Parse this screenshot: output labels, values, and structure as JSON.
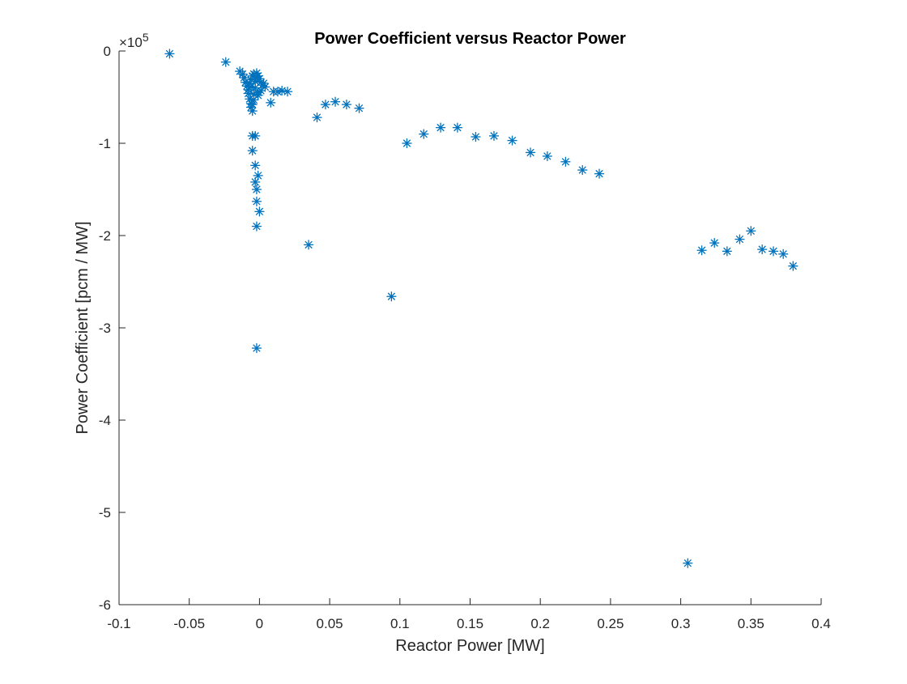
{
  "chart_data": {
    "type": "scatter",
    "title": "Power Coefficient versus Reactor Power",
    "xlabel": "Reactor Power [MW]",
    "ylabel": "Power Coefficient [pcm / MW]",
    "y_exponent_label": "×10",
    "y_exponent_power": "5",
    "xlim": [
      -0.1,
      0.4
    ],
    "ylim": [
      -600000,
      0
    ],
    "xticks": [
      -0.1,
      -0.05,
      0,
      0.05,
      0.1,
      0.15,
      0.2,
      0.25,
      0.3,
      0.35,
      0.4
    ],
    "xtick_labels": [
      "-0.1",
      "-0.05",
      "0",
      "0.05",
      "0.1",
      "0.15",
      "0.2",
      "0.25",
      "0.3",
      "0.35",
      "0.4"
    ],
    "yticks": [
      0,
      -100000,
      -200000,
      -300000,
      -400000,
      -500000,
      -600000
    ],
    "ytick_labels": [
      "0",
      "-1",
      "-2",
      "-3",
      "-4",
      "-5",
      "-6"
    ],
    "marker": "asterisk",
    "color": "#0072BD",
    "grid": false,
    "box": false,
    "legend": false,
    "x": [
      -0.064,
      -0.024,
      -0.014,
      -0.012,
      -0.011,
      -0.01,
      -0.009,
      -0.008,
      -0.008,
      -0.007,
      -0.006,
      -0.006,
      -0.005,
      -0.005,
      -0.004,
      -0.004,
      -0.003,
      -0.003,
      -0.002,
      -0.002,
      -0.001,
      0.0,
      0.001,
      0.002,
      0.003,
      0.004,
      0.001,
      -0.004,
      -0.005,
      -0.006,
      -0.007,
      -0.006,
      -0.005,
      -0.003,
      -0.005,
      -0.003,
      -0.003,
      -0.002,
      -0.001,
      -0.002,
      -0.002,
      -0.002,
      0.0,
      0.008,
      -0.001,
      -0.001,
      0.01,
      0.013,
      0.016,
      0.02,
      0.035,
      0.041,
      0.047,
      0.054,
      0.062,
      0.071,
      0.094,
      0.105,
      0.117,
      0.129,
      0.141,
      0.154,
      0.167,
      0.18,
      0.193,
      0.205,
      0.218,
      0.23,
      0.242,
      0.305,
      0.315,
      0.324,
      0.333,
      0.342,
      0.35,
      0.358,
      0.366,
      0.373,
      0.38
    ],
    "y": [
      -3000,
      -12000,
      -22000,
      -25000,
      -29000,
      -34000,
      -38000,
      -42000,
      -46000,
      -52000,
      -57000,
      -61000,
      -65000,
      -58000,
      -53000,
      -47000,
      -40000,
      -33000,
      -28000,
      -24000,
      -27000,
      -30000,
      -34000,
      -37000,
      -35000,
      -39000,
      -43000,
      -25000,
      -27000,
      -31000,
      -35000,
      -39000,
      -92000,
      -92000,
      -108000,
      -124000,
      -142000,
      -150000,
      -135000,
      -163000,
      -190000,
      -322000,
      -174000,
      -56000,
      -48000,
      -45000,
      -44000,
      -44000,
      -43000,
      -44000,
      -210000,
      -72000,
      -58000,
      -55000,
      -58000,
      -62000,
      -266000,
      -100000,
      -90000,
      -83000,
      -83000,
      -93000,
      -92000,
      -97000,
      -110000,
      -114000,
      -120000,
      -129000,
      -133000,
      -555000,
      -216000,
      -208000,
      -217000,
      -204000,
      -195000,
      -215000,
      -217000,
      -220000,
      -233000
    ]
  }
}
